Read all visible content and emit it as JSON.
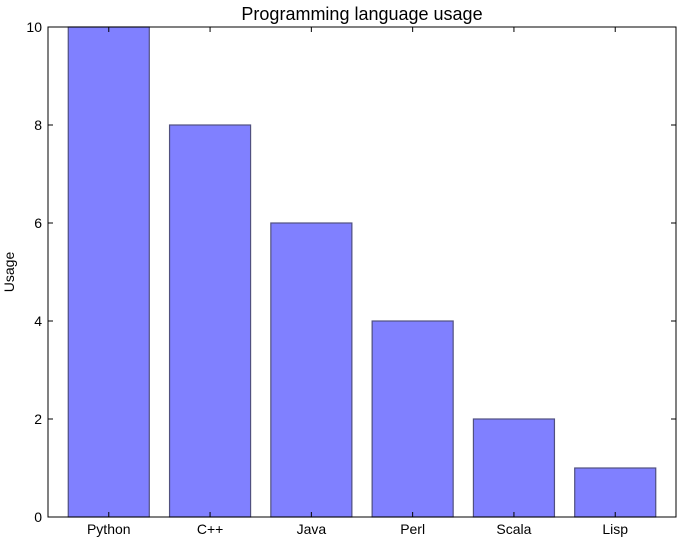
{
  "chart_data": {
    "type": "bar",
    "title": "Programming language usage",
    "xlabel": "",
    "ylabel": "Usage",
    "categories": [
      "Python",
      "C++",
      "Java",
      "Perl",
      "Scala",
      "Lisp"
    ],
    "values": [
      10,
      8,
      6,
      4,
      2,
      1
    ],
    "ylim": [
      0,
      10
    ],
    "yticks": [
      "0",
      "2",
      "4",
      "6",
      "8",
      "10"
    ],
    "grid": false,
    "bar_color": "#8080ff",
    "bar_edge_color": "#505080"
  }
}
